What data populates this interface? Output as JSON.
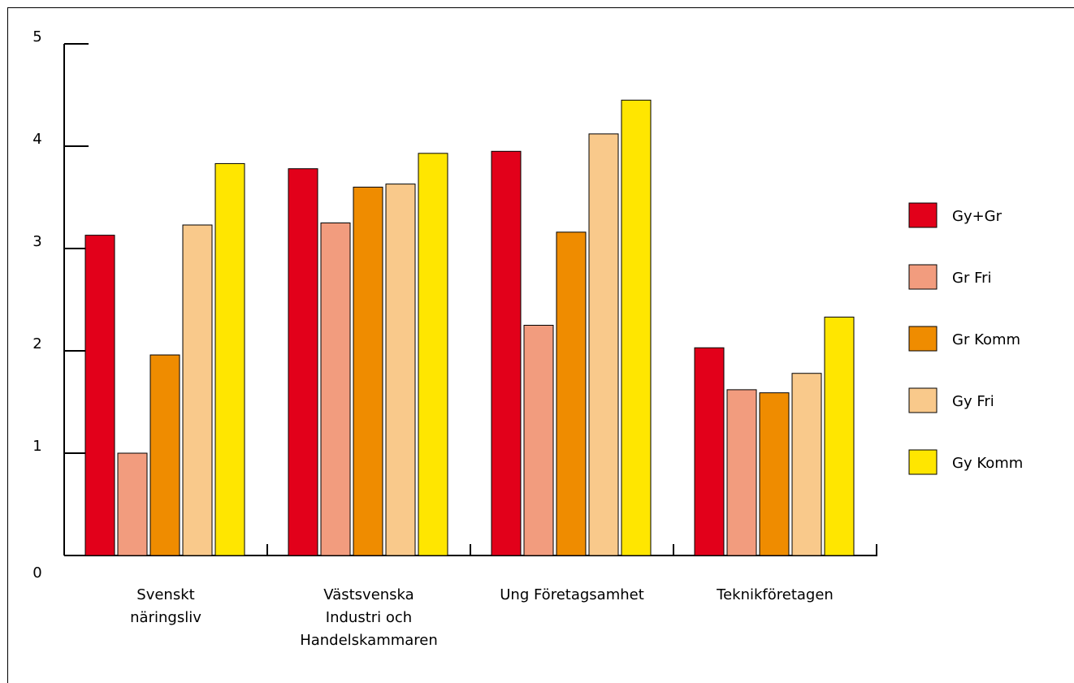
{
  "chart_data": {
    "type": "bar",
    "title": "",
    "xlabel": "",
    "ylabel": "",
    "ylim": [
      0,
      5
    ],
    "yticks": [
      "0",
      "1",
      "2",
      "3",
      "4",
      "5"
    ],
    "categories": [
      [
        "Svenskt",
        "näringsliv"
      ],
      [
        "Västsvenska",
        "Industri och",
        "Handelskammaren"
      ],
      [
        "Ung Företagsamhet"
      ],
      [
        "Teknikföretagen"
      ]
    ],
    "series": [
      {
        "name": "Gy+Gr",
        "color": "#e2001a",
        "values": [
          3.13,
          3.78,
          3.95,
          2.03
        ]
      },
      {
        "name": "Gr Fri",
        "color": "#f29c7e",
        "values": [
          1.0,
          3.25,
          2.25,
          1.62
        ]
      },
      {
        "name": "Gr Komm",
        "color": "#ef8c00",
        "values": [
          1.96,
          3.6,
          3.16,
          1.59
        ]
      },
      {
        "name": "Gy Fri",
        "color": "#f9c98b",
        "values": [
          3.23,
          3.63,
          4.12,
          1.78
        ]
      },
      {
        "name": "Gy Komm",
        "color": "#ffe600",
        "values": [
          3.83,
          3.93,
          4.45,
          2.33
        ]
      }
    ],
    "grid": false,
    "legend_position": "right"
  }
}
